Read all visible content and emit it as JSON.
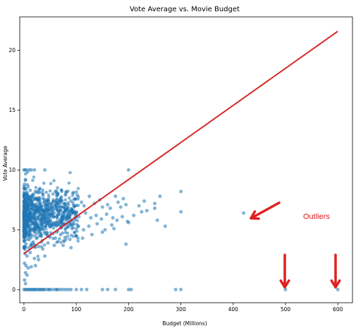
{
  "chart_data": {
    "type": "scatter",
    "title": "Vote Average vs. Movie Budget",
    "xlabel": "Budget (Millions)",
    "ylabel": "Vote Average",
    "xlim": [
      -8,
      628
    ],
    "ylim": [
      -1.1,
      22.8
    ],
    "xticks": [
      0,
      100,
      200,
      300,
      400,
      500,
      600
    ],
    "yticks": [
      0,
      5,
      10,
      15,
      20
    ],
    "grid": false,
    "colors": {
      "points": "#1f77b4",
      "regression": "#d62728",
      "annotation": "#e02020"
    },
    "regression_line": {
      "x": [
        0,
        600
      ],
      "y": [
        3.0,
        21.6
      ]
    },
    "annotation_text": "Outliers",
    "outliers": [
      [
        420,
        6.4
      ],
      [
        500,
        0
      ],
      [
        600,
        0
      ]
    ],
    "points": [
      [
        0,
        10
      ],
      [
        2,
        10
      ],
      [
        5,
        10
      ],
      [
        10,
        10
      ],
      [
        14,
        10
      ],
      [
        20,
        10
      ],
      [
        40,
        10
      ],
      [
        200,
        10
      ],
      [
        3,
        9.2
      ],
      [
        1,
        8.8
      ],
      [
        8,
        8.6
      ],
      [
        4,
        8.4
      ],
      [
        12,
        8.3
      ],
      [
        22,
        8.2
      ],
      [
        35,
        8.1
      ],
      [
        60,
        8.2
      ],
      [
        80,
        8.0
      ],
      [
        95,
        8.1
      ],
      [
        102,
        7.9
      ],
      [
        125,
        7.8
      ],
      [
        145,
        7.5
      ],
      [
        175,
        7.8
      ],
      [
        190,
        7.6
      ],
      [
        260,
        7.8
      ],
      [
        300,
        8.2
      ],
      [
        5,
        7.9
      ],
      [
        15,
        7.7
      ],
      [
        25,
        7.6
      ],
      [
        30,
        7.4
      ],
      [
        45,
        7.5
      ],
      [
        55,
        7.3
      ],
      [
        65,
        7.2
      ],
      [
        70,
        7.6
      ],
      [
        85,
        7.1
      ],
      [
        90,
        7.4
      ],
      [
        110,
        7.3
      ],
      [
        115,
        7.0
      ],
      [
        135,
        7.2
      ],
      [
        150,
        6.9
      ],
      [
        160,
        7.1
      ],
      [
        165,
        6.8
      ],
      [
        180,
        7.3
      ],
      [
        185,
        6.9
      ],
      [
        195,
        7.1
      ],
      [
        220,
        7.0
      ],
      [
        225,
        6.5
      ],
      [
        230,
        7.4
      ],
      [
        250,
        7.2
      ],
      [
        250,
        6.8
      ],
      [
        255,
        5.8
      ],
      [
        5,
        7.0
      ],
      [
        10,
        6.8
      ],
      [
        18,
        6.6
      ],
      [
        28,
        6.9
      ],
      [
        38,
        6.5
      ],
      [
        48,
        6.7
      ],
      [
        58,
        6.4
      ],
      [
        68,
        6.6
      ],
      [
        75,
        6.2
      ],
      [
        88,
        6.5
      ],
      [
        98,
        6.3
      ],
      [
        105,
        6.1
      ],
      [
        118,
        6.4
      ],
      [
        128,
        6.0
      ],
      [
        138,
        6.2
      ],
      [
        148,
        5.9
      ],
      [
        158,
        6.3
      ],
      [
        170,
        6.0
      ],
      [
        178,
        5.8
      ],
      [
        188,
        6.1
      ],
      [
        198,
        5.7
      ],
      [
        210,
        6.2
      ],
      [
        235,
        6.6
      ],
      [
        270,
        5.3
      ],
      [
        300,
        6.5
      ],
      [
        3,
        6.0
      ],
      [
        8,
        5.8
      ],
      [
        16,
        5.6
      ],
      [
        24,
        5.9
      ],
      [
        34,
        5.5
      ],
      [
        44,
        5.7
      ],
      [
        54,
        5.4
      ],
      [
        62,
        5.6
      ],
      [
        72,
        5.2
      ],
      [
        82,
        5.5
      ],
      [
        92,
        5.1
      ],
      [
        104,
        5.3
      ],
      [
        114,
        5.0
      ],
      [
        124,
        5.3
      ],
      [
        140,
        5.5
      ],
      [
        155,
        5.0
      ],
      [
        168,
        5.4
      ],
      [
        172,
        5.1
      ],
      [
        200,
        5.6
      ],
      [
        2,
        5.0
      ],
      [
        6,
        4.8
      ],
      [
        12,
        4.6
      ],
      [
        20,
        4.9
      ],
      [
        30,
        4.5
      ],
      [
        40,
        4.7
      ],
      [
        50,
        4.4
      ],
      [
        60,
        4.3
      ],
      [
        70,
        4.6
      ],
      [
        88,
        4.2
      ],
      [
        100,
        4.5
      ],
      [
        112,
        4.3
      ],
      [
        130,
        4.6
      ],
      [
        150,
        4.8
      ],
      [
        195,
        3.8
      ],
      [
        1,
        4.0
      ],
      [
        4,
        3.8
      ],
      [
        9,
        3.5
      ],
      [
        16,
        3.9
      ],
      [
        28,
        3.6
      ],
      [
        36,
        3.4
      ],
      [
        46,
        3.9
      ],
      [
        58,
        3.7
      ],
      [
        75,
        3.7
      ],
      [
        90,
        3.5
      ],
      [
        2,
        3.0
      ],
      [
        6,
        2.8
      ],
      [
        12,
        3.1
      ],
      [
        20,
        2.6
      ],
      [
        28,
        2.5
      ],
      [
        40,
        2.8
      ],
      [
        1,
        2.2
      ],
      [
        4,
        2.0
      ],
      [
        8,
        1.8
      ],
      [
        14,
        1.9
      ],
      [
        22,
        2.0
      ],
      [
        3,
        1.4
      ],
      [
        6,
        1.2
      ],
      [
        1,
        0.8
      ],
      [
        3,
        0.5
      ],
      [
        0,
        0
      ],
      [
        3,
        0
      ],
      [
        5,
        0
      ],
      [
        8,
        0
      ],
      [
        10,
        0
      ],
      [
        13,
        0
      ],
      [
        15,
        0
      ],
      [
        18,
        0
      ],
      [
        20,
        0
      ],
      [
        22,
        0
      ],
      [
        25,
        0
      ],
      [
        28,
        0
      ],
      [
        30,
        0
      ],
      [
        33,
        0
      ],
      [
        35,
        0
      ],
      [
        38,
        0
      ],
      [
        40,
        0
      ],
      [
        45,
        0
      ],
      [
        48,
        0
      ],
      [
        50,
        0
      ],
      [
        55,
        0
      ],
      [
        60,
        0
      ],
      [
        63,
        0
      ],
      [
        65,
        0
      ],
      [
        70,
        0
      ],
      [
        75,
        0
      ],
      [
        80,
        0
      ],
      [
        85,
        0
      ],
      [
        90,
        0
      ],
      [
        100,
        0
      ],
      [
        110,
        0
      ],
      [
        120,
        0
      ],
      [
        150,
        0
      ],
      [
        160,
        0
      ],
      [
        175,
        0
      ],
      [
        200,
        0
      ],
      [
        205,
        0
      ],
      [
        290,
        0
      ],
      [
        300,
        0
      ],
      [
        420,
        6.4
      ],
      [
        500,
        0
      ],
      [
        600,
        0
      ]
    ]
  }
}
